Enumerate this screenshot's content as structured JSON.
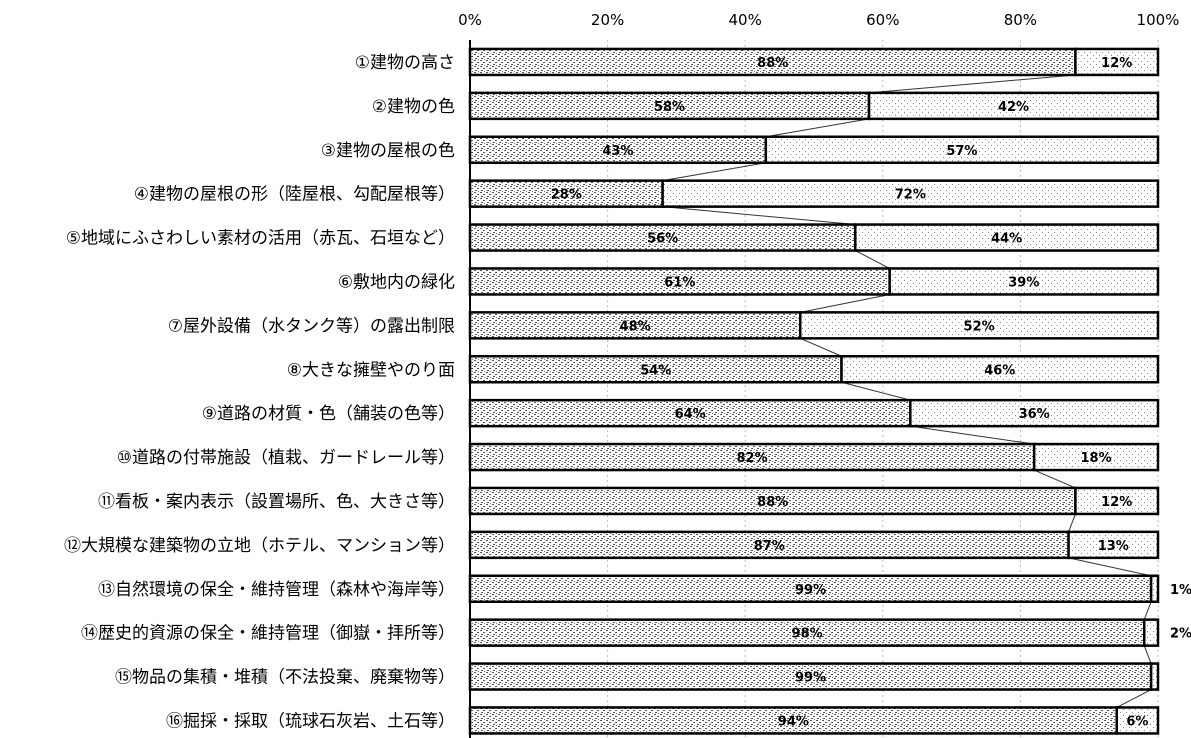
{
  "chart_data": {
    "type": "bar",
    "orientation": "horizontal",
    "stacked": "100%",
    "xlim": [
      0,
      100
    ],
    "x_ticks": [
      "0%",
      "20%",
      "40%",
      "60%",
      "80%",
      "100%"
    ],
    "grid": true,
    "categories": [
      "①建物の高さ",
      "②建物の色",
      "③建物の屋根の色",
      "④建物の屋根の形（陸屋根、勾配屋根等）",
      "⑤地域にふさわしい素材の活用（赤瓦、石垣など）",
      "⑥敷地内の緑化",
      "⑦屋外設備（水タンク等）の露出制限",
      "⑧大きな擁壁やのり面",
      "⑨道路の材質・色（舗装の色等）",
      "⑩道路の付帯施設（植栽、ガードレール等）",
      "⑪看板・案内表示（設置場所、色、大きさ等）",
      "⑫大規模な建築物の立地（ホテル、マンション等）",
      "⑬自然環境の保全・維持管理（森林や海岸等）",
      "⑭歴史的資源の保全・維持管理（御嶽・拝所等）",
      "⑮物品の集積・堆積（不法投棄、廃棄物等）",
      "⑯掘採・採取（琉球石灰岩、土石等）"
    ],
    "series": [
      {
        "values": [
          88,
          58,
          43,
          28,
          56,
          61,
          48,
          54,
          64,
          82,
          88,
          87,
          99,
          98,
          99,
          94
        ],
        "labels": [
          "88%",
          "58%",
          "43%",
          "28%",
          "56%",
          "61%",
          "48%",
          "54%",
          "64%",
          "82%",
          "88%",
          "87%",
          "99%",
          "98%",
          "99%",
          "94%"
        ],
        "color": "#cfcfcf"
      },
      {
        "values": [
          12,
          42,
          57,
          72,
          44,
          39,
          52,
          46,
          36,
          18,
          12,
          13,
          1,
          2,
          1,
          6
        ],
        "labels": [
          "12%",
          "42%",
          "57%",
          "72%",
          "44%",
          "39%",
          "52%",
          "46%",
          "36%",
          "18%",
          "12%",
          "13%",
          "1%",
          "2%",
          "",
          "6%"
        ],
        "color": "#eeeeee"
      }
    ]
  }
}
